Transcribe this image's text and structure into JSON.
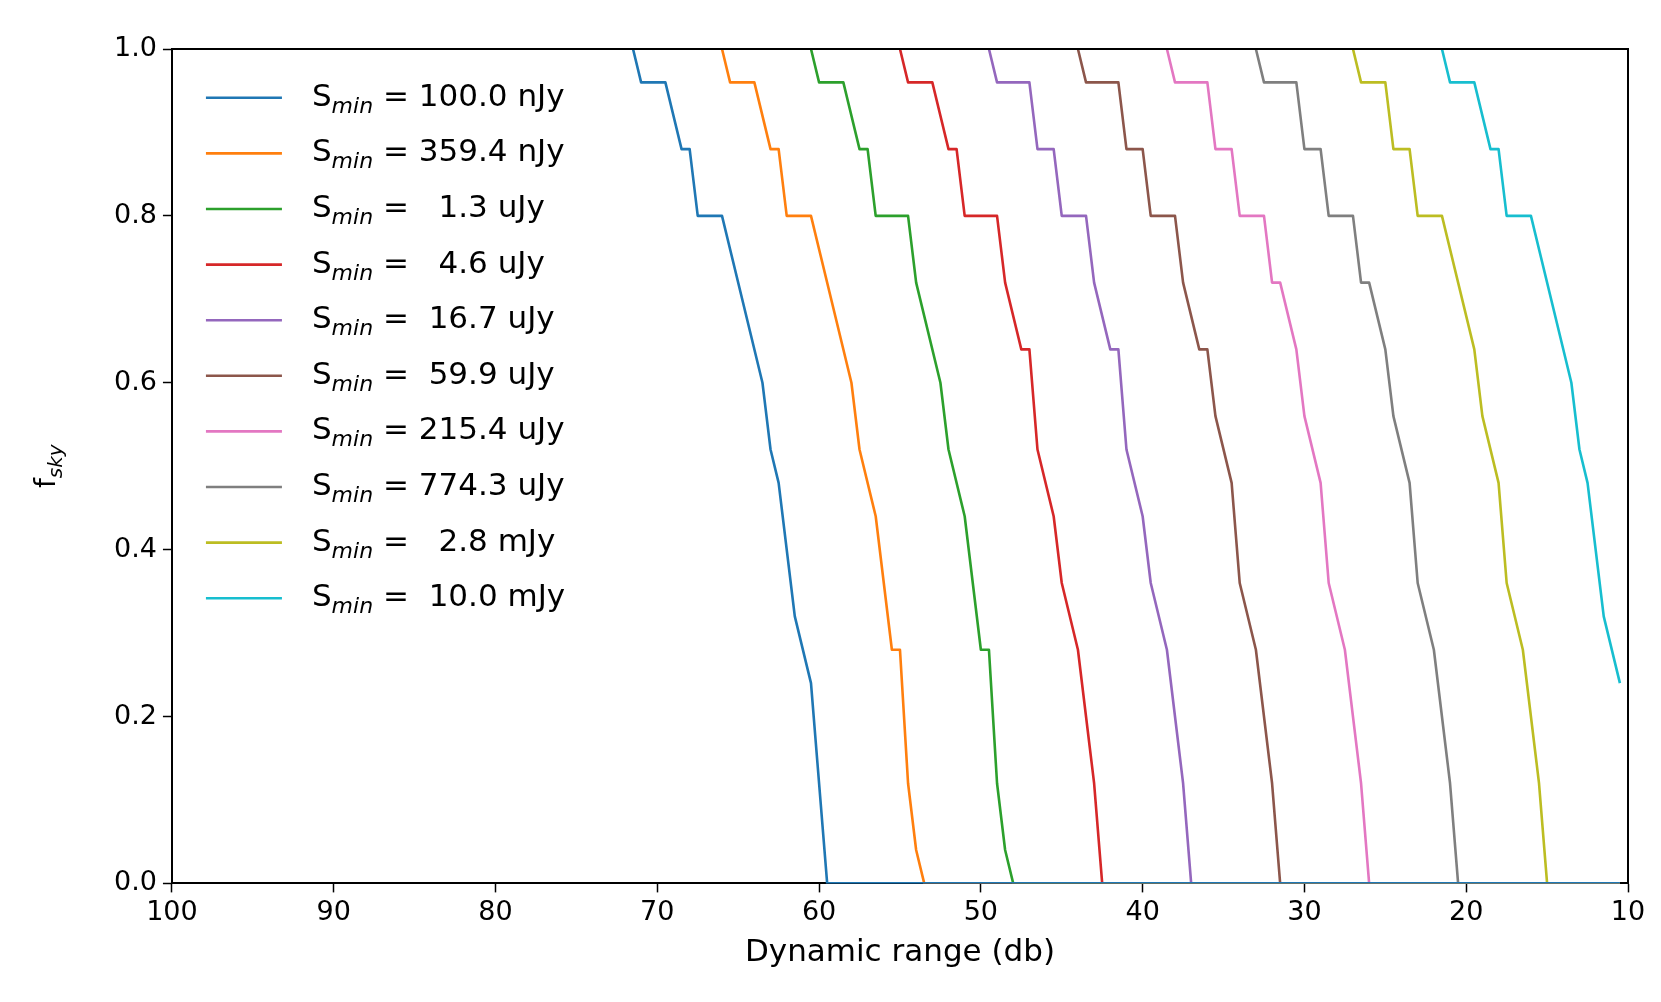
{
  "chart_data": {
    "type": "line",
    "xlabel": "Dynamic range (db)",
    "ylabel": "f$_{sky}$",
    "xlim": [
      100,
      10
    ],
    "xticks": [
      100,
      90,
      80,
      70,
      60,
      50,
      40,
      30,
      20,
      10
    ],
    "ylim": [
      0,
      1
    ],
    "yticks": [
      {
        "value": 0,
        "label": "0.0"
      },
      {
        "value": 0.2,
        "label": "0.2"
      },
      {
        "value": 0.4,
        "label": "0.4"
      },
      {
        "value": 0.6,
        "label": "0.6"
      },
      {
        "value": 0.8,
        "label": "0.8"
      },
      {
        "value": 1,
        "label": "1.0"
      }
    ],
    "grid": false,
    "legend": "top left",
    "series": [
      {
        "name": "S$_{min}$ = 100.0 nJy",
        "color": "#1f77b4",
        "x": [
          71.5,
          71,
          69.5,
          68.5,
          68,
          67.5,
          66,
          63.5,
          63,
          62.5,
          61.5,
          60.5,
          59.5,
          10.5
        ],
        "values": [
          1,
          0.96,
          0.96,
          0.88,
          0.88,
          0.8,
          0.8,
          0.6,
          0.52,
          0.48,
          0.32,
          0.24,
          0,
          0
        ]
      },
      {
        "name": "S$_{min}$ = 359.4 nJy",
        "color": "#ff7f0e",
        "x": [
          66,
          65.5,
          64,
          63,
          62.5,
          62,
          60.5,
          58,
          57.5,
          56.5,
          55.5,
          55,
          54.5,
          54,
          53.5,
          10.5
        ],
        "values": [
          1,
          0.96,
          0.96,
          0.88,
          0.88,
          0.8,
          0.8,
          0.6,
          0.52,
          0.44,
          0.28,
          0.28,
          0.12,
          0.04,
          0,
          0
        ]
      },
      {
        "name": "S$_{min}$ =   1.3 uJy",
        "color": "#2ca02c",
        "x": [
          60.5,
          60,
          58.5,
          57.5,
          57,
          56.5,
          54.5,
          54,
          52.5,
          52,
          51,
          50,
          49.5,
          49,
          48.5,
          48,
          10.5
        ],
        "values": [
          1,
          0.96,
          0.96,
          0.88,
          0.88,
          0.8,
          0.8,
          0.72,
          0.6,
          0.52,
          0.44,
          0.28,
          0.28,
          0.12,
          0.04,
          0,
          0
        ]
      },
      {
        "name": "S$_{min}$ =   4.6 uJy",
        "color": "#d62728",
        "x": [
          55,
          54.5,
          53,
          52,
          51.5,
          51,
          49,
          48.5,
          47.5,
          47,
          46.5,
          45.5,
          45,
          44,
          43,
          42.5,
          10.5
        ],
        "values": [
          1,
          0.96,
          0.96,
          0.88,
          0.88,
          0.8,
          0.8,
          0.72,
          0.64,
          0.64,
          0.52,
          0.44,
          0.36,
          0.28,
          0.12,
          0,
          0
        ]
      },
      {
        "name": "S$_{min}$ =  16.7 uJy",
        "color": "#9467bd",
        "x": [
          49.5,
          49,
          47,
          46.5,
          45.5,
          45,
          43.5,
          43,
          42,
          41.5,
          41,
          40,
          39.5,
          38.5,
          37.5,
          37,
          10.5
        ],
        "values": [
          1,
          0.96,
          0.96,
          0.88,
          0.88,
          0.8,
          0.8,
          0.72,
          0.64,
          0.64,
          0.52,
          0.44,
          0.36,
          0.28,
          0.12,
          0,
          0
        ]
      },
      {
        "name": "S$_{min}$ =  59.9 uJy",
        "color": "#8c564b",
        "x": [
          44,
          43.5,
          41.5,
          41,
          40,
          39.5,
          38,
          37.5,
          36.5,
          36,
          35.5,
          34.5,
          34,
          33,
          32,
          31.5,
          10.5
        ],
        "values": [
          1,
          0.96,
          0.96,
          0.88,
          0.88,
          0.8,
          0.8,
          0.72,
          0.64,
          0.64,
          0.56,
          0.48,
          0.36,
          0.28,
          0.12,
          0,
          0
        ]
      },
      {
        "name": "S$_{min}$ = 215.4 uJy",
        "color": "#e377c2",
        "x": [
          38.5,
          38,
          36,
          35.5,
          34.5,
          34,
          32.5,
          32,
          31.5,
          30.5,
          30,
          29,
          28.5,
          27.5,
          26.5,
          26,
          10.5
        ],
        "values": [
          1,
          0.96,
          0.96,
          0.88,
          0.88,
          0.8,
          0.8,
          0.72,
          0.72,
          0.64,
          0.56,
          0.48,
          0.36,
          0.28,
          0.12,
          0,
          0
        ]
      },
      {
        "name": "S$_{min}$ = 774.3 uJy",
        "color": "#7f7f7f",
        "x": [
          33,
          32.5,
          30.5,
          30,
          29,
          28.5,
          27,
          26.5,
          26,
          25,
          24.5,
          23.5,
          23,
          22,
          21,
          20.5,
          10.5
        ],
        "values": [
          1,
          0.96,
          0.96,
          0.88,
          0.88,
          0.8,
          0.8,
          0.72,
          0.72,
          0.64,
          0.56,
          0.48,
          0.36,
          0.28,
          0.12,
          0,
          0
        ]
      },
      {
        "name": "S$_{min}$ =   2.8 mJy",
        "color": "#bcbd22",
        "x": [
          27,
          26.5,
          25,
          24.5,
          23.5,
          23,
          21.5,
          19.5,
          19,
          18,
          17.5,
          16.5,
          15.5,
          15,
          10.5
        ],
        "values": [
          1,
          0.96,
          0.96,
          0.88,
          0.88,
          0.8,
          0.8,
          0.64,
          0.56,
          0.48,
          0.36,
          0.28,
          0.12,
          0,
          0
        ]
      },
      {
        "name": "S$_{min}$ =  10.0 mJy",
        "color": "#17becf",
        "x": [
          21.5,
          21,
          19.5,
          18.5,
          18,
          17.5,
          16,
          13.5,
          13,
          12.5,
          11.5,
          10.5
        ],
        "values": [
          1,
          0.96,
          0.96,
          0.88,
          0.88,
          0.8,
          0.8,
          0.6,
          0.52,
          0.48,
          0.32,
          0.24
        ]
      }
    ]
  }
}
